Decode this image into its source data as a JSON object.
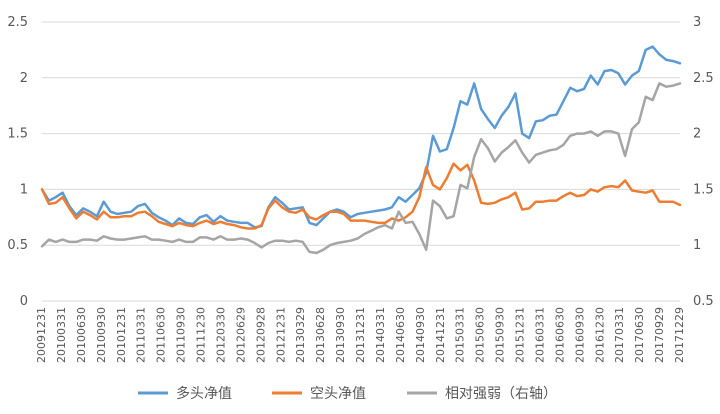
{
  "chart_data": {
    "type": "line",
    "title": "",
    "legend_position": "bottom",
    "grid": true,
    "y_left": {
      "min": 0,
      "max": 2.5,
      "ticks": [
        "0",
        "0.5",
        "1",
        "1.5",
        "2",
        "2.5"
      ]
    },
    "y_right": {
      "min": 0.5,
      "max": 3,
      "ticks": [
        "0.5",
        "1",
        "1.5",
        "2",
        "2.5",
        "3"
      ]
    },
    "x_tick_labels": [
      "20091231",
      "20100331",
      "20100630",
      "20100930",
      "20101231",
      "20110331",
      "20110630",
      "20110930",
      "20111230",
      "20120330",
      "20120629",
      "20120928",
      "20121231",
      "20130329",
      "20130628",
      "20130930",
      "20131231",
      "20140331",
      "20140630",
      "20140930",
      "20141231",
      "20150331",
      "20150630",
      "20150930",
      "20151231",
      "20160331",
      "20160630",
      "20160930",
      "20161230",
      "20170331",
      "20170630",
      "20170929",
      "20171229"
    ],
    "series": [
      {
        "name": "多头净值",
        "axis": "left",
        "color": "#5b9bd5",
        "values": [
          1.0,
          0.9,
          0.93,
          0.97,
          0.85,
          0.77,
          0.83,
          0.8,
          0.76,
          0.89,
          0.8,
          0.78,
          0.79,
          0.8,
          0.85,
          0.87,
          0.79,
          0.75,
          0.72,
          0.68,
          0.74,
          0.7,
          0.69,
          0.75,
          0.77,
          0.71,
          0.76,
          0.72,
          0.71,
          0.7,
          0.7,
          0.66,
          0.67,
          0.84,
          0.93,
          0.88,
          0.82,
          0.83,
          0.84,
          0.7,
          0.68,
          0.74,
          0.8,
          0.82,
          0.8,
          0.75,
          0.78,
          0.79,
          0.8,
          0.81,
          0.82,
          0.84,
          0.93,
          0.89,
          0.95,
          1.01,
          1.15,
          1.48,
          1.34,
          1.36,
          1.55,
          1.79,
          1.76,
          1.95,
          1.72,
          1.63,
          1.55,
          1.66,
          1.74,
          1.86,
          1.5,
          1.46,
          1.61,
          1.62,
          1.66,
          1.67,
          1.79,
          1.91,
          1.88,
          1.9,
          2.02,
          1.94,
          2.06,
          2.07,
          2.04,
          1.94,
          2.02,
          2.06,
          2.25,
          2.28,
          2.21,
          2.16,
          2.15,
          2.13
        ]
      },
      {
        "name": "空头净值",
        "axis": "left",
        "color": "#ed7d31",
        "values": [
          1.0,
          0.87,
          0.88,
          0.93,
          0.83,
          0.74,
          0.8,
          0.77,
          0.73,
          0.8,
          0.75,
          0.75,
          0.76,
          0.76,
          0.79,
          0.8,
          0.76,
          0.71,
          0.69,
          0.67,
          0.7,
          0.68,
          0.67,
          0.7,
          0.72,
          0.69,
          0.71,
          0.69,
          0.68,
          0.66,
          0.65,
          0.65,
          0.68,
          0.83,
          0.9,
          0.84,
          0.8,
          0.79,
          0.82,
          0.75,
          0.73,
          0.77,
          0.8,
          0.8,
          0.78,
          0.72,
          0.72,
          0.72,
          0.71,
          0.7,
          0.7,
          0.74,
          0.72,
          0.75,
          0.8,
          0.93,
          1.2,
          1.04,
          1.0,
          1.1,
          1.23,
          1.17,
          1.22,
          1.08,
          0.88,
          0.87,
          0.88,
          0.91,
          0.93,
          0.97,
          0.82,
          0.83,
          0.89,
          0.89,
          0.9,
          0.9,
          0.94,
          0.97,
          0.94,
          0.95,
          1.0,
          0.98,
          1.02,
          1.03,
          1.02,
          1.08,
          0.99,
          0.98,
          0.97,
          0.99,
          0.89,
          0.89,
          0.89,
          0.86
        ]
      },
      {
        "name": "相对强弱（右轴）",
        "axis": "right",
        "color": "#a5a5a5",
        "values": [
          0.99,
          1.05,
          1.03,
          1.05,
          1.03,
          1.03,
          1.05,
          1.05,
          1.04,
          1.08,
          1.06,
          1.05,
          1.05,
          1.06,
          1.07,
          1.08,
          1.05,
          1.05,
          1.04,
          1.03,
          1.05,
          1.03,
          1.03,
          1.07,
          1.07,
          1.05,
          1.08,
          1.05,
          1.05,
          1.06,
          1.05,
          1.02,
          0.98,
          1.02,
          1.04,
          1.04,
          1.03,
          1.04,
          1.03,
          0.94,
          0.93,
          0.96,
          1.0,
          1.02,
          1.03,
          1.04,
          1.06,
          1.1,
          1.13,
          1.16,
          1.18,
          1.15,
          1.3,
          1.2,
          1.21,
          1.1,
          0.96,
          1.4,
          1.35,
          1.24,
          1.26,
          1.54,
          1.51,
          1.79,
          1.95,
          1.87,
          1.75,
          1.83,
          1.88,
          1.94,
          1.83,
          1.74,
          1.81,
          1.83,
          1.85,
          1.86,
          1.9,
          1.98,
          2.0,
          2.0,
          2.02,
          1.98,
          2.02,
          2.02,
          2.0,
          1.8,
          2.04,
          2.1,
          2.33,
          2.3,
          2.45,
          2.42,
          2.43,
          2.45
        ]
      }
    ]
  }
}
